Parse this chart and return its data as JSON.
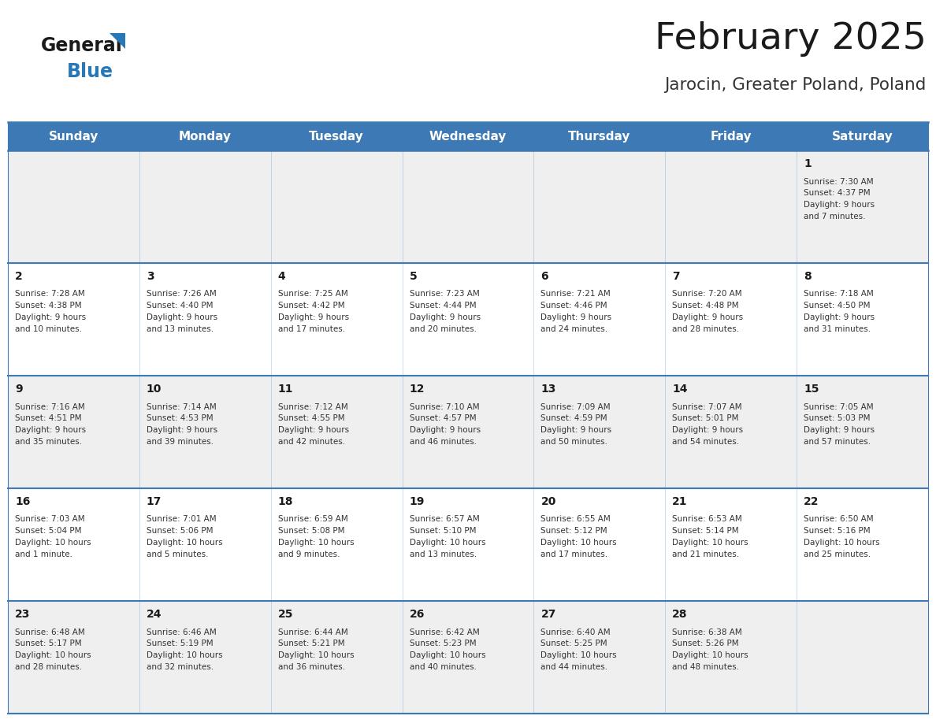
{
  "title": "February 2025",
  "subtitle": "Jarocin, Greater Poland, Poland",
  "header_color": "#3d7ab5",
  "header_text_color": "#ffffff",
  "day_names": [
    "Sunday",
    "Monday",
    "Tuesday",
    "Wednesday",
    "Thursday",
    "Friday",
    "Saturday"
  ],
  "title_color": "#1a1a1a",
  "subtitle_color": "#333333",
  "cell_border_color": "#3d7ab5",
  "cell_bg_row0": "#efefef",
  "cell_bg_row1": "#ffffff",
  "cell_bg_row2": "#efefef",
  "cell_bg_row3": "#ffffff",
  "cell_bg_row4": "#efefef",
  "day_number_color": "#1a1a1a",
  "info_text_color": "#333333",
  "logo_general_color": "#1a1a1a",
  "logo_blue_color": "#2878b8",
  "logo_triangle_color": "#2878b8",
  "calendar": [
    [
      null,
      null,
      null,
      null,
      null,
      null,
      {
        "day": "1",
        "sunrise": "7:30 AM",
        "sunset": "4:37 PM",
        "daylight_h": "9 hours",
        "daylight_m": "and 7 minutes."
      }
    ],
    [
      {
        "day": "2",
        "sunrise": "7:28 AM",
        "sunset": "4:38 PM",
        "daylight_h": "9 hours",
        "daylight_m": "and 10 minutes."
      },
      {
        "day": "3",
        "sunrise": "7:26 AM",
        "sunset": "4:40 PM",
        "daylight_h": "9 hours",
        "daylight_m": "and 13 minutes."
      },
      {
        "day": "4",
        "sunrise": "7:25 AM",
        "sunset": "4:42 PM",
        "daylight_h": "9 hours",
        "daylight_m": "and 17 minutes."
      },
      {
        "day": "5",
        "sunrise": "7:23 AM",
        "sunset": "4:44 PM",
        "daylight_h": "9 hours",
        "daylight_m": "and 20 minutes."
      },
      {
        "day": "6",
        "sunrise": "7:21 AM",
        "sunset": "4:46 PM",
        "daylight_h": "9 hours",
        "daylight_m": "and 24 minutes."
      },
      {
        "day": "7",
        "sunrise": "7:20 AM",
        "sunset": "4:48 PM",
        "daylight_h": "9 hours",
        "daylight_m": "and 28 minutes."
      },
      {
        "day": "8",
        "sunrise": "7:18 AM",
        "sunset": "4:50 PM",
        "daylight_h": "9 hours",
        "daylight_m": "and 31 minutes."
      }
    ],
    [
      {
        "day": "9",
        "sunrise": "7:16 AM",
        "sunset": "4:51 PM",
        "daylight_h": "9 hours",
        "daylight_m": "and 35 minutes."
      },
      {
        "day": "10",
        "sunrise": "7:14 AM",
        "sunset": "4:53 PM",
        "daylight_h": "9 hours",
        "daylight_m": "and 39 minutes."
      },
      {
        "day": "11",
        "sunrise": "7:12 AM",
        "sunset": "4:55 PM",
        "daylight_h": "9 hours",
        "daylight_m": "and 42 minutes."
      },
      {
        "day": "12",
        "sunrise": "7:10 AM",
        "sunset": "4:57 PM",
        "daylight_h": "9 hours",
        "daylight_m": "and 46 minutes."
      },
      {
        "day": "13",
        "sunrise": "7:09 AM",
        "sunset": "4:59 PM",
        "daylight_h": "9 hours",
        "daylight_m": "and 50 minutes."
      },
      {
        "day": "14",
        "sunrise": "7:07 AM",
        "sunset": "5:01 PM",
        "daylight_h": "9 hours",
        "daylight_m": "and 54 minutes."
      },
      {
        "day": "15",
        "sunrise": "7:05 AM",
        "sunset": "5:03 PM",
        "daylight_h": "9 hours",
        "daylight_m": "and 57 minutes."
      }
    ],
    [
      {
        "day": "16",
        "sunrise": "7:03 AM",
        "sunset": "5:04 PM",
        "daylight_h": "10 hours",
        "daylight_m": "and 1 minute."
      },
      {
        "day": "17",
        "sunrise": "7:01 AM",
        "sunset": "5:06 PM",
        "daylight_h": "10 hours",
        "daylight_m": "and 5 minutes."
      },
      {
        "day": "18",
        "sunrise": "6:59 AM",
        "sunset": "5:08 PM",
        "daylight_h": "10 hours",
        "daylight_m": "and 9 minutes."
      },
      {
        "day": "19",
        "sunrise": "6:57 AM",
        "sunset": "5:10 PM",
        "daylight_h": "10 hours",
        "daylight_m": "and 13 minutes."
      },
      {
        "day": "20",
        "sunrise": "6:55 AM",
        "sunset": "5:12 PM",
        "daylight_h": "10 hours",
        "daylight_m": "and 17 minutes."
      },
      {
        "day": "21",
        "sunrise": "6:53 AM",
        "sunset": "5:14 PM",
        "daylight_h": "10 hours",
        "daylight_m": "and 21 minutes."
      },
      {
        "day": "22",
        "sunrise": "6:50 AM",
        "sunset": "5:16 PM",
        "daylight_h": "10 hours",
        "daylight_m": "and 25 minutes."
      }
    ],
    [
      {
        "day": "23",
        "sunrise": "6:48 AM",
        "sunset": "5:17 PM",
        "daylight_h": "10 hours",
        "daylight_m": "and 28 minutes."
      },
      {
        "day": "24",
        "sunrise": "6:46 AM",
        "sunset": "5:19 PM",
        "daylight_h": "10 hours",
        "daylight_m": "and 32 minutes."
      },
      {
        "day": "25",
        "sunrise": "6:44 AM",
        "sunset": "5:21 PM",
        "daylight_h": "10 hours",
        "daylight_m": "and 36 minutes."
      },
      {
        "day": "26",
        "sunrise": "6:42 AM",
        "sunset": "5:23 PM",
        "daylight_h": "10 hours",
        "daylight_m": "and 40 minutes."
      },
      {
        "day": "27",
        "sunrise": "6:40 AM",
        "sunset": "5:25 PM",
        "daylight_h": "10 hours",
        "daylight_m": "and 44 minutes."
      },
      {
        "day": "28",
        "sunrise": "6:38 AM",
        "sunset": "5:26 PM",
        "daylight_h": "10 hours",
        "daylight_m": "and 48 minutes."
      },
      null
    ]
  ]
}
